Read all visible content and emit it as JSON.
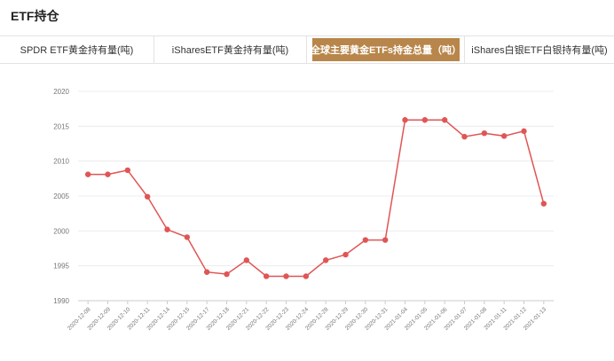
{
  "page": {
    "title": "ETF持仓"
  },
  "tabs": [
    {
      "label": "SPDR ETF黄金持有量(吨)",
      "active": false
    },
    {
      "label": "iSharesETF黄金持有量(吨)",
      "active": false
    },
    {
      "label": "全球主要黄金ETFs持金总量（吨）",
      "active": true
    },
    {
      "label": "iShares白银ETF白银持有量(吨)",
      "active": false
    }
  ],
  "colors": {
    "accent": "#b8864a",
    "line": "#e05555",
    "grid": "#ececec"
  },
  "chart_data": {
    "type": "line",
    "title": "",
    "xlabel": "",
    "ylabel": "",
    "ylim": [
      1990,
      2020
    ],
    "yticks": [
      1990,
      1995,
      2000,
      2005,
      2010,
      2015,
      2020
    ],
    "grid": true,
    "categories": [
      "2020-12-08",
      "2020-12-09",
      "2020-12-10",
      "2020-12-11",
      "2020-12-14",
      "2020-12-15",
      "2020-12-17",
      "2020-12-18",
      "2020-12-21",
      "2020-12-22",
      "2020-12-23",
      "2020-12-24",
      "2020-12-28",
      "2020-12-29",
      "2020-12-30",
      "2020-12-31",
      "2021-01-04",
      "2021-01-05",
      "2021-01-06",
      "2021-01-07",
      "2021-01-08",
      "2021-01-11",
      "2021-01-12",
      "2021-01-13"
    ],
    "series": [
      {
        "values": [
          2008.1,
          2008.1,
          2008.7,
          2004.9,
          2000.2,
          1999.1,
          1994.1,
          1993.8,
          1995.8,
          1993.5,
          1993.5,
          1993.5,
          1995.8,
          1996.6,
          1998.7,
          1998.7,
          2015.9,
          2015.9,
          2015.9,
          2013.5,
          2014.0,
          2013.6,
          2014.3,
          2003.9
        ]
      }
    ]
  }
}
